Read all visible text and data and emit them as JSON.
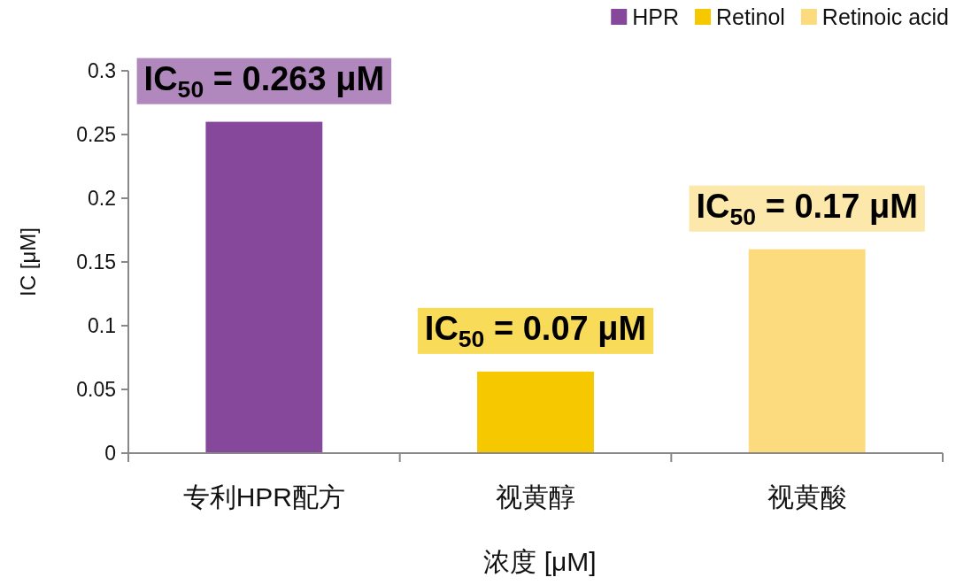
{
  "chart_data": {
    "type": "bar",
    "xlabel": "浓度 [μM]",
    "ylabel": "IC [μM]",
    "categories": [
      "专利HPR配方",
      "视黄醇",
      "视黄酸"
    ],
    "series": [
      {
        "name": "HPR",
        "color": "#86489a",
        "values": [
          0.26,
          null,
          null
        ]
      },
      {
        "name": "Retinol",
        "color": "#f5c800",
        "values": [
          null,
          0.064,
          null
        ]
      },
      {
        "name": "Retinoic acid",
        "color": "#fbdb7e",
        "values": [
          null,
          null,
          0.16
        ]
      }
    ],
    "ylim": [
      0,
      0.3
    ],
    "yticks": [
      0,
      0.05,
      0.1,
      0.15,
      0.2,
      0.25,
      0.3
    ],
    "annotations": [
      "IC$_{50}$ = 0.263 μM",
      "IC$_{50}$ = 0.07 μM",
      "IC$_{50}$ = 0.17 μM"
    ],
    "legend": "top right",
    "grid": false
  }
}
